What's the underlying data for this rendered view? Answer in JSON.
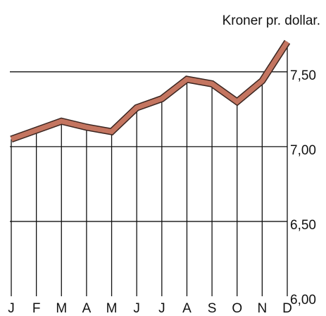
{
  "chart_data": {
    "type": "line",
    "y_axis_label": "Kroner pr. dollar.",
    "categories": [
      "J",
      "F",
      "M",
      "A",
      "M",
      "J",
      "J",
      "A",
      "S",
      "O",
      "N",
      "D"
    ],
    "series": [
      {
        "name": "Kroner pr. dollar",
        "color": "#c47560",
        "values": [
          7.05,
          7.11,
          7.17,
          7.13,
          7.1,
          7.26,
          7.32,
          7.45,
          7.42,
          7.3,
          7.44,
          7.7
        ]
      }
    ],
    "ylim": [
      6.0,
      7.98
    ],
    "yticks": [
      {
        "value": 6.0,
        "label": "6,00"
      },
      {
        "value": 6.5,
        "label": "6,50"
      },
      {
        "value": 7.0,
        "label": "7,00"
      },
      {
        "value": 7.5,
        "label": "7,50"
      }
    ],
    "grid": true
  }
}
